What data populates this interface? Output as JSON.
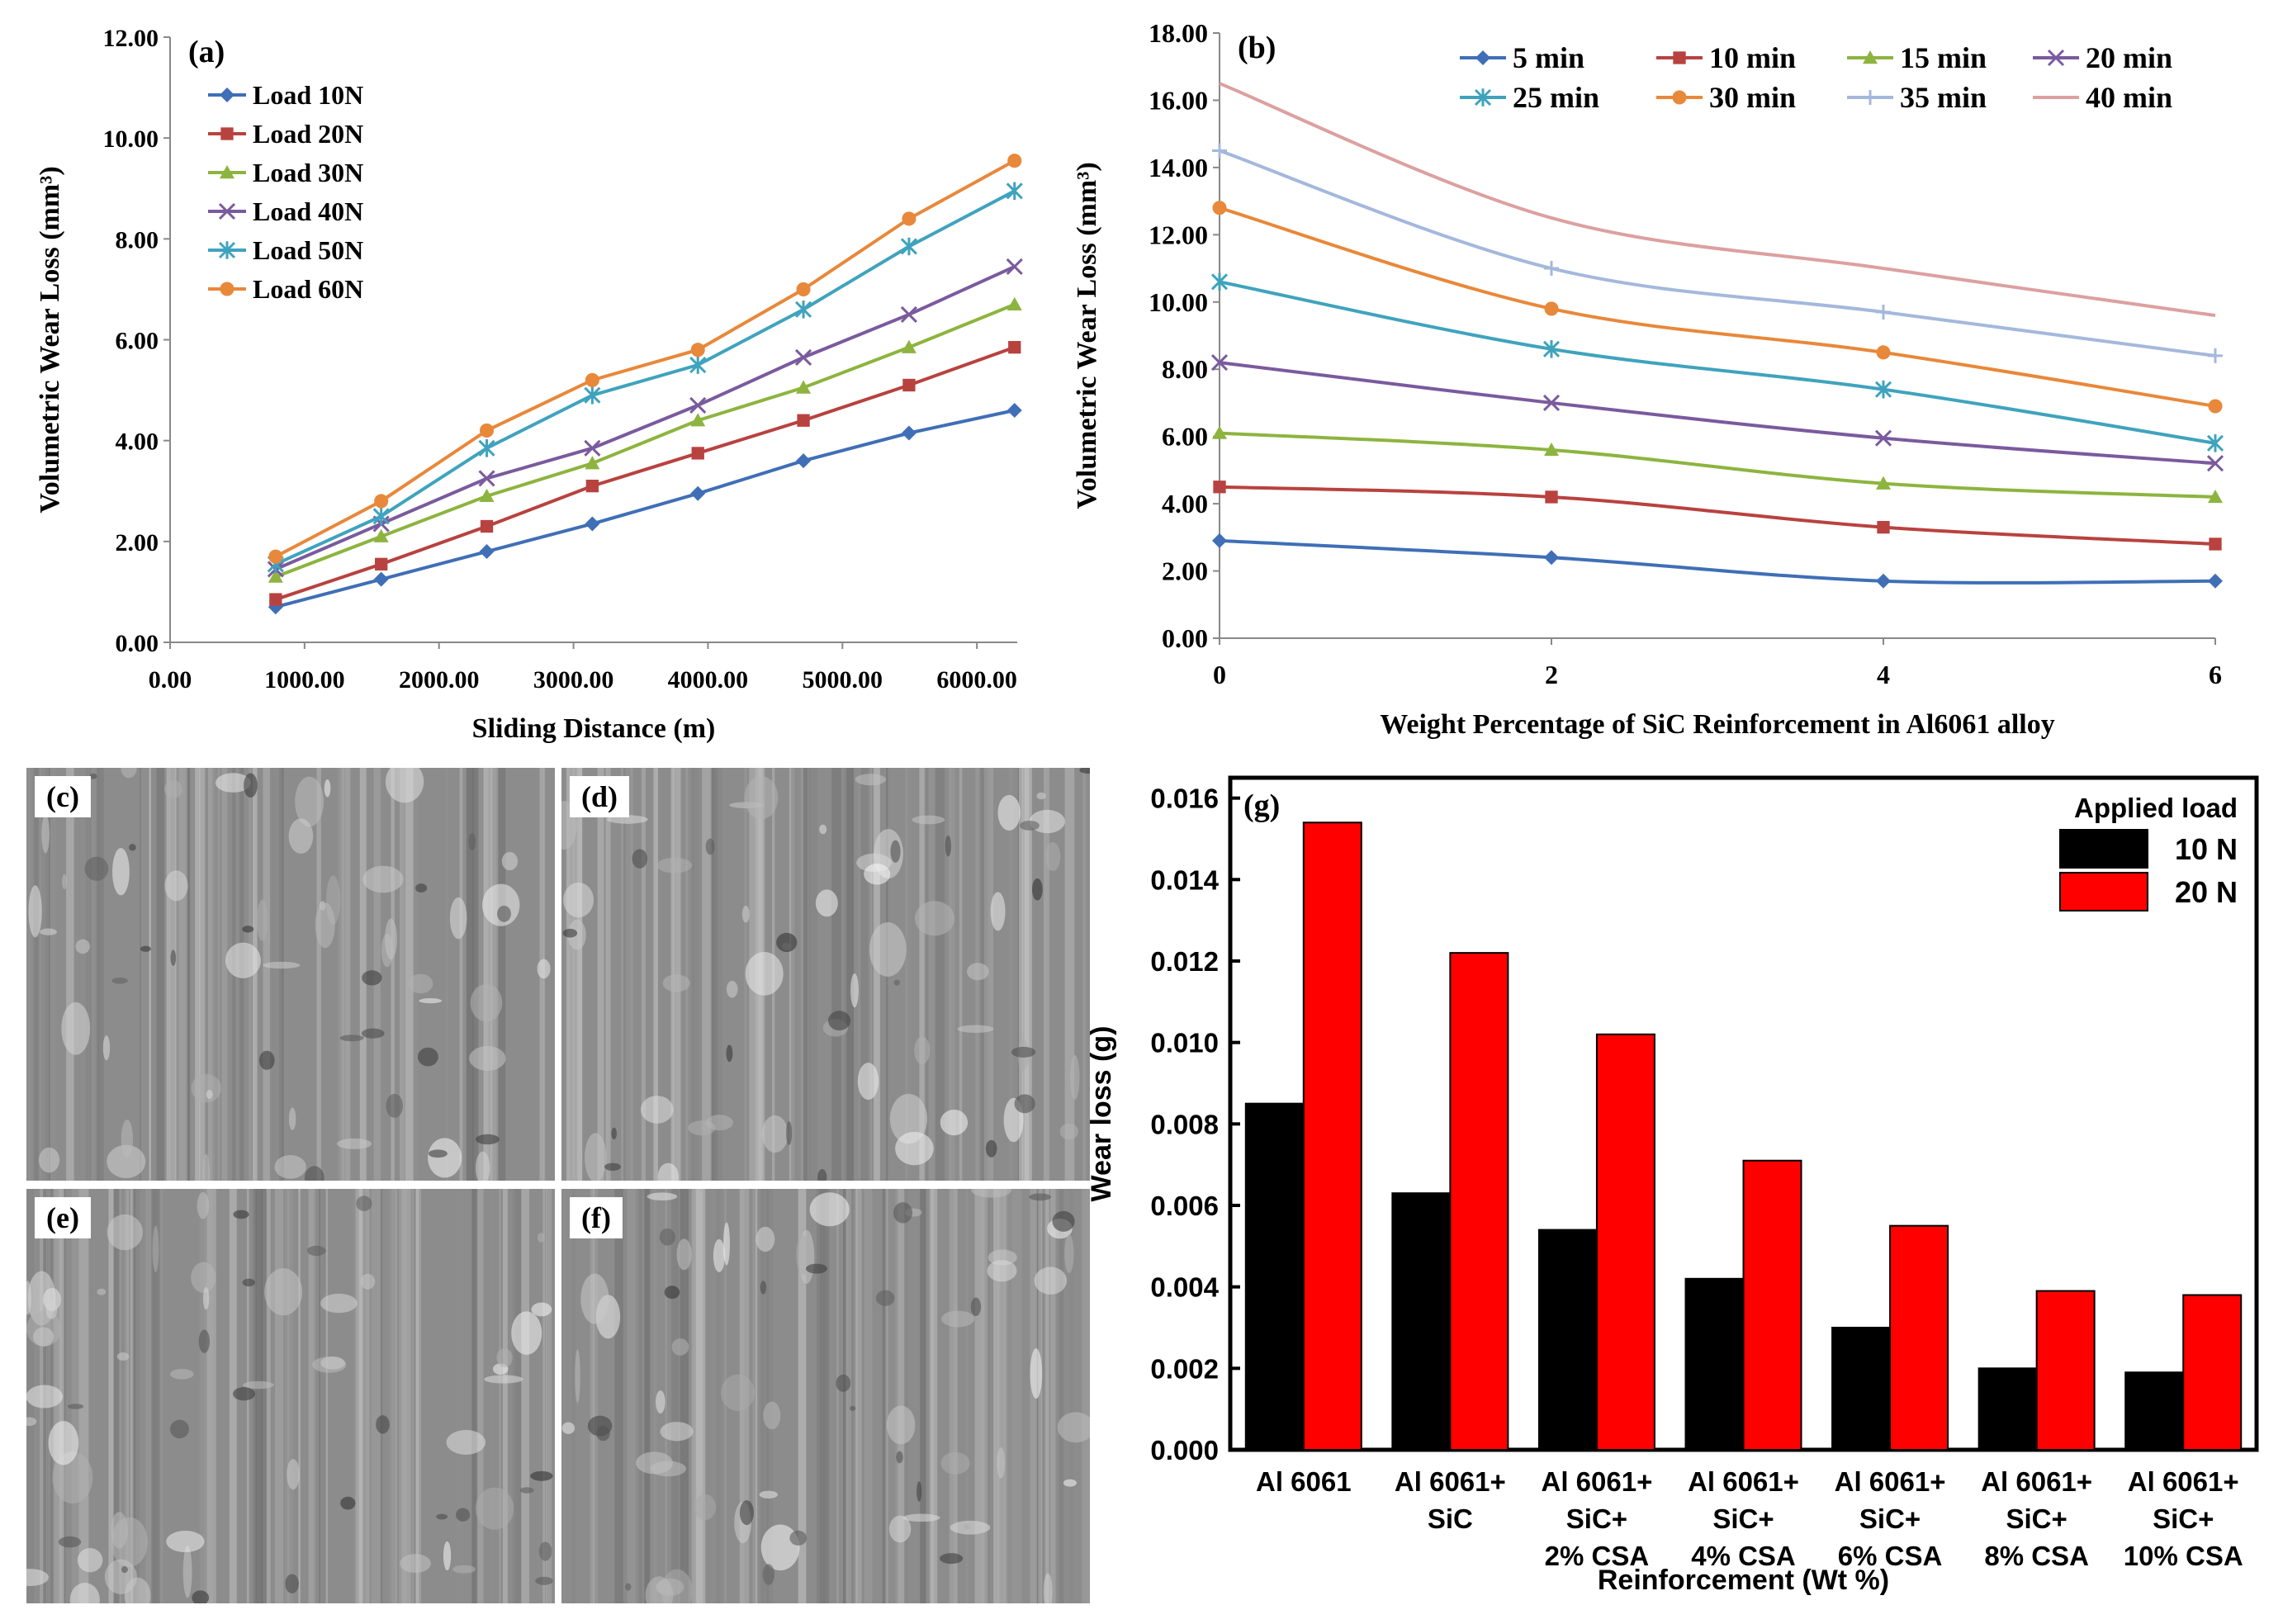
{
  "chart_data": [
    {
      "panel": "a",
      "type": "line",
      "label": "(a)",
      "xlabel": "Sliding Distance (m)",
      "ylabel": "Volumetric Wear Loss (mm³)",
      "xlim": [
        0,
        6300
      ],
      "ylim": [
        0,
        12
      ],
      "xticks": [
        "0.00",
        "1000.00",
        "2000.00",
        "3000.00",
        "4000.00",
        "5000.00",
        "6000.00"
      ],
      "yticks": [
        "0.00",
        "2.00",
        "4.00",
        "6.00",
        "8.00",
        "10.00",
        "12.00"
      ],
      "legend_position": "top-left",
      "x": [
        785,
        1570,
        2355,
        3140,
        3925,
        4710,
        5495,
        6280
      ],
      "series": [
        {
          "name": "Load 10N",
          "color": "#3f6fb6",
          "marker": "diamond",
          "values": [
            0.7,
            1.25,
            1.8,
            2.35,
            2.95,
            3.6,
            4.15,
            4.6
          ]
        },
        {
          "name": "Load 20N",
          "color": "#b8423f",
          "marker": "square",
          "values": [
            0.85,
            1.55,
            2.3,
            3.1,
            3.75,
            4.4,
            5.1,
            5.85
          ]
        },
        {
          "name": "Load 30N",
          "color": "#8db43f",
          "marker": "triangle",
          "values": [
            1.3,
            2.1,
            2.9,
            3.55,
            4.4,
            5.05,
            5.85,
            6.7
          ]
        },
        {
          "name": "Load 40N",
          "color": "#7a5a9e",
          "marker": "x",
          "values": [
            1.45,
            2.35,
            3.25,
            3.85,
            4.7,
            5.65,
            6.5,
            7.45
          ]
        },
        {
          "name": "Load 50N",
          "color": "#3fa3bd",
          "marker": "star",
          "values": [
            1.55,
            2.5,
            3.85,
            4.9,
            5.5,
            6.6,
            7.85,
            8.95
          ]
        },
        {
          "name": "Load 60N",
          "color": "#e8883a",
          "marker": "circle",
          "values": [
            1.7,
            2.8,
            4.2,
            5.2,
            5.8,
            7.0,
            8.4,
            9.55
          ]
        }
      ]
    },
    {
      "panel": "b",
      "type": "line",
      "label": "(b)",
      "xlabel": "Weight Percentage of SiC Reinforcement in Al6061 alloy",
      "ylabel": "Volumetric Wear Loss (mm³)",
      "xlim": [
        0,
        6
      ],
      "ylim": [
        0,
        18
      ],
      "xticks": [
        "0",
        "2",
        "4",
        "6"
      ],
      "yticks": [
        "0.00",
        "2.00",
        "4.00",
        "6.00",
        "8.00",
        "10.00",
        "12.00",
        "14.00",
        "16.00",
        "18.00"
      ],
      "legend_position": "top",
      "x": [
        0,
        2,
        4,
        6
      ],
      "series": [
        {
          "name": "5 min",
          "color": "#3f6fb6",
          "marker": "diamond",
          "values": [
            2.9,
            2.4,
            1.7,
            1.7
          ]
        },
        {
          "name": "10 min",
          "color": "#b8423f",
          "marker": "square",
          "values": [
            4.5,
            4.2,
            3.3,
            2.8
          ]
        },
        {
          "name": "15 min",
          "color": "#8db43f",
          "marker": "triangle",
          "values": [
            6.1,
            5.6,
            4.6,
            4.2
          ]
        },
        {
          "name": "20 min",
          "color": "#7a5a9e",
          "marker": "x",
          "values": [
            8.2,
            7.0,
            5.95,
            5.2
          ]
        },
        {
          "name": "25 min",
          "color": "#3fa3bd",
          "marker": "star",
          "values": [
            10.6,
            8.6,
            7.4,
            5.8
          ]
        },
        {
          "name": "30 min",
          "color": "#e8883a",
          "marker": "circle",
          "values": [
            12.8,
            9.8,
            8.5,
            6.9
          ]
        },
        {
          "name": "35 min",
          "color": "#a4b8dc",
          "marker": "plus",
          "values": [
            14.5,
            11.0,
            9.7,
            8.4
          ]
        },
        {
          "name": "40 min",
          "color": "#dca0a0",
          "marker": "none",
          "values": [
            16.5,
            12.5,
            11.0,
            9.6
          ]
        }
      ]
    },
    {
      "panel": "g",
      "type": "bar",
      "label": "(g)",
      "xlabel": "Reinforcement (Wt %)",
      "ylabel": "Wear loss (g)",
      "ylim": [
        0,
        0.0165
      ],
      "yticks": [
        "0.000",
        "0.002",
        "0.004",
        "0.006",
        "0.008",
        "0.010",
        "0.012",
        "0.014",
        "0.016"
      ],
      "legend_title": "Applied load",
      "legend_position": "top-right",
      "categories": [
        [
          "Al 6061"
        ],
        [
          "Al 6061+",
          "SiC"
        ],
        [
          "Al 6061+",
          "SiC+",
          "2% CSA"
        ],
        [
          "Al 6061+",
          "SiC+",
          "4% CSA"
        ],
        [
          "Al 6061+",
          "SiC+",
          "6% CSA"
        ],
        [
          "Al 6061+",
          "SiC+",
          "8% CSA"
        ],
        [
          "Al 6061+",
          "SiC+",
          "10% CSA"
        ]
      ],
      "series": [
        {
          "name": "10 N",
          "color": "#000000",
          "values": [
            0.0085,
            0.0063,
            0.0054,
            0.0042,
            0.003,
            0.002,
            0.0019
          ]
        },
        {
          "name": "20 N",
          "color": "#ff0000",
          "values": [
            0.0154,
            0.0122,
            0.0102,
            0.0071,
            0.0055,
            0.0039,
            0.0038
          ]
        }
      ]
    }
  ],
  "micrographs": [
    {
      "label": "(c)"
    },
    {
      "label": "(d)"
    },
    {
      "label": "(e)"
    },
    {
      "label": "(f)"
    }
  ]
}
